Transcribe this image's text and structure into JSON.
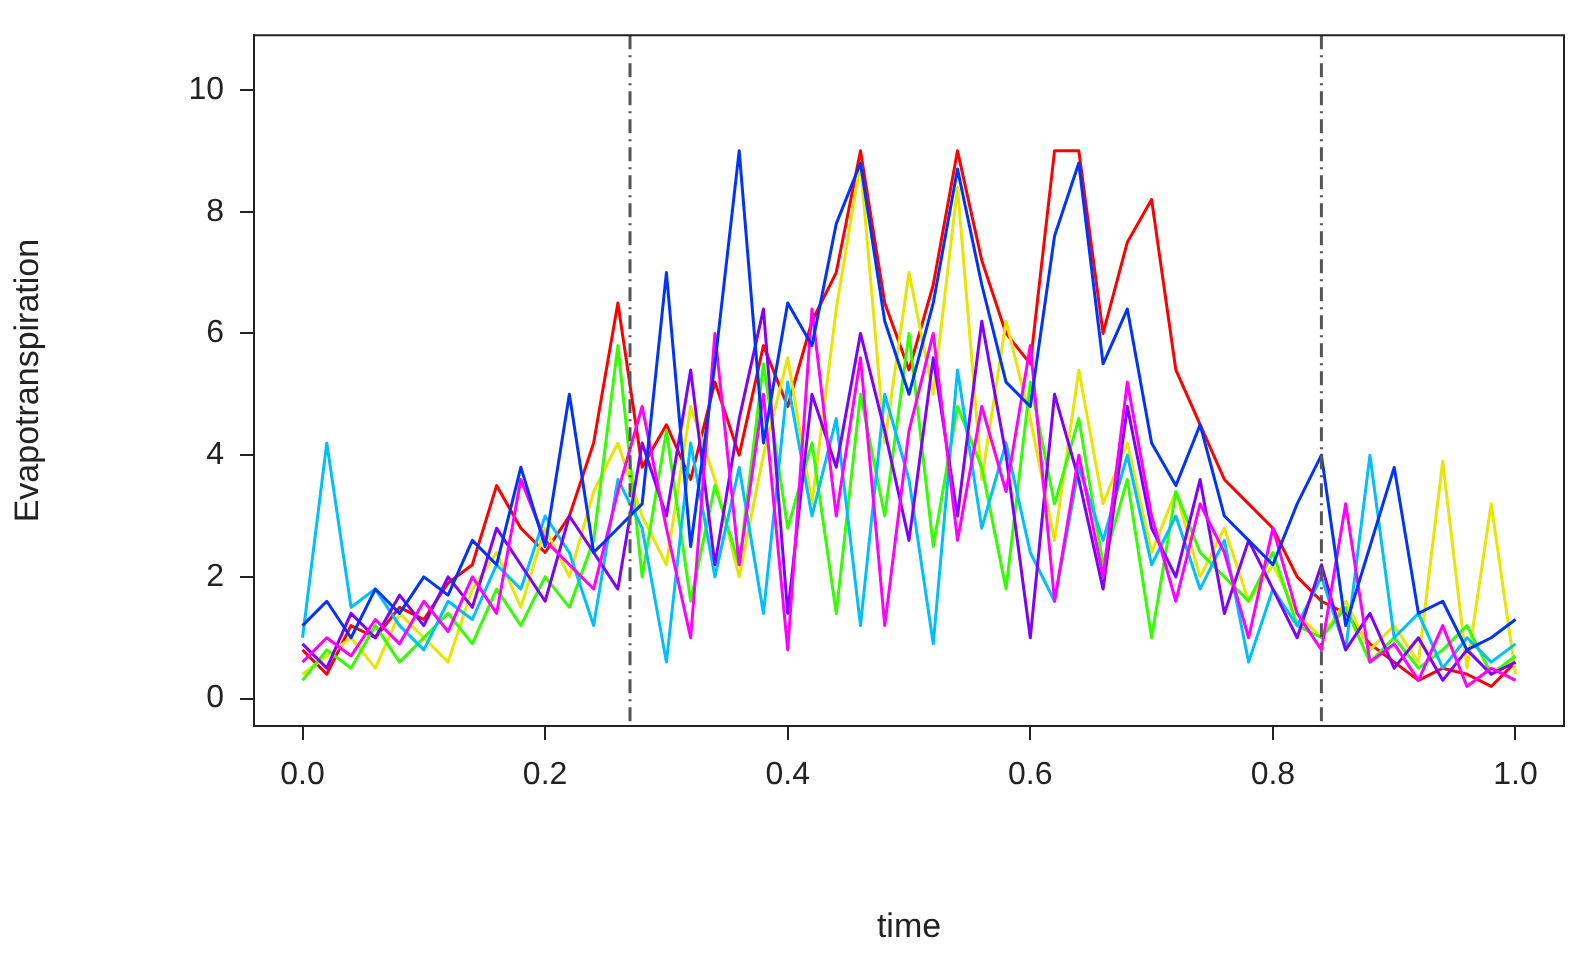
{
  "chart_data": {
    "type": "line",
    "xlabel": "time",
    "ylabel": "Evapotranspiration",
    "x": [
      0,
      0.02,
      0.04,
      0.06,
      0.08,
      0.1,
      0.12,
      0.14,
      0.16,
      0.18,
      0.2,
      0.22,
      0.24,
      0.26,
      0.28,
      0.3,
      0.32,
      0.34,
      0.36,
      0.38,
      0.4,
      0.42,
      0.44,
      0.46,
      0.48,
      0.5,
      0.52,
      0.54,
      0.56,
      0.58,
      0.6,
      0.62,
      0.64,
      0.66,
      0.68,
      0.7,
      0.72,
      0.74,
      0.76,
      0.78,
      0.8,
      0.82,
      0.84,
      0.86,
      0.88,
      0.9,
      0.92,
      0.94,
      0.96,
      0.98,
      1
    ],
    "series": [
      {
        "color": "#ff0000",
        "values": [
          0.8,
          0.4,
          1.2,
          1.0,
          1.5,
          1.3,
          1.9,
          2.2,
          3.5,
          2.8,
          2.4,
          3.0,
          4.2,
          6.5,
          3.8,
          4.5,
          3.6,
          5.2,
          4.0,
          5.8,
          4.8,
          6.2,
          7.0,
          9.0,
          6.5,
          5.4,
          6.8,
          9.0,
          7.2,
          6.0,
          5.5,
          9.0,
          9.0,
          6.0,
          7.5,
          8.2,
          5.4,
          4.5,
          3.6,
          3.2,
          2.8,
          2.0,
          1.6,
          1.4,
          0.9,
          0.6,
          0.3,
          0.5,
          0.4,
          0.2,
          0.6
        ]
      },
      {
        "color": "#e6e600",
        "values": [
          0.4,
          0.7,
          1.0,
          0.5,
          1.4,
          1.0,
          0.6,
          1.8,
          2.4,
          1.5,
          2.8,
          2.0,
          3.4,
          4.2,
          3.0,
          2.2,
          4.8,
          3.6,
          2.0,
          4.0,
          5.6,
          3.2,
          6.4,
          8.8,
          4.2,
          7.0,
          5.0,
          8.4,
          3.6,
          6.2,
          4.6,
          2.6,
          5.4,
          3.2,
          4.2,
          2.4,
          3.4,
          2.0,
          2.8,
          1.6,
          2.2,
          1.4,
          1.0,
          1.6,
          0.8,
          1.2,
          0.6,
          3.9,
          0.5,
          3.2,
          0.4
        ]
      },
      {
        "color": "#33ff00",
        "values": [
          0.3,
          0.8,
          0.5,
          1.2,
          0.6,
          1.0,
          1.4,
          0.9,
          1.8,
          1.2,
          2.0,
          1.5,
          2.6,
          5.8,
          2.0,
          4.4,
          1.6,
          3.5,
          2.2,
          5.5,
          2.8,
          4.2,
          1.4,
          5.0,
          3.0,
          6.0,
          2.5,
          4.8,
          3.8,
          1.8,
          5.2,
          3.2,
          4.6,
          2.2,
          3.6,
          1.0,
          3.4,
          2.4,
          2.0,
          1.6,
          2.4,
          1.2,
          1.0,
          1.5,
          0.6,
          1.0,
          0.5,
          0.8,
          1.2,
          0.4,
          0.7
        ]
      },
      {
        "color": "#00bfff",
        "values": [
          1.0,
          4.2,
          1.5,
          1.8,
          1.2,
          0.8,
          1.6,
          1.3,
          2.2,
          1.8,
          3.0,
          2.4,
          1.2,
          3.6,
          2.8,
          0.6,
          4.2,
          2.0,
          3.8,
          1.4,
          5.2,
          3.0,
          4.6,
          1.2,
          5.0,
          3.6,
          0.9,
          5.4,
          2.8,
          4.2,
          2.4,
          1.6,
          3.8,
          2.6,
          4.0,
          2.2,
          3.0,
          1.8,
          2.6,
          0.6,
          1.8,
          1.2,
          2.0,
          0.8,
          4.0,
          1.0,
          1.4,
          0.5,
          1.0,
          0.6,
          0.9
        ]
      },
      {
        "color": "#8000ff",
        "values": [
          0.9,
          0.5,
          1.4,
          1.0,
          1.7,
          1.2,
          2.0,
          1.5,
          2.8,
          2.2,
          1.6,
          3.0,
          2.4,
          1.8,
          4.2,
          3.0,
          5.4,
          2.2,
          4.6,
          6.4,
          1.4,
          5.0,
          3.8,
          6.0,
          4.4,
          2.6,
          5.6,
          3.0,
          6.2,
          4.0,
          1.0,
          5.0,
          3.6,
          1.8,
          4.8,
          2.8,
          2.0,
          3.6,
          1.4,
          2.6,
          1.8,
          1.0,
          2.2,
          0.8,
          1.4,
          0.5,
          1.0,
          0.3,
          0.8,
          0.4,
          0.6
        ]
      },
      {
        "color": "#ff00ff",
        "values": [
          0.6,
          1.0,
          0.7,
          1.3,
          0.9,
          1.6,
          1.1,
          2.0,
          1.4,
          3.6,
          2.6,
          2.2,
          1.8,
          3.4,
          4.8,
          2.8,
          1.0,
          6.0,
          2.2,
          5.0,
          0.8,
          6.4,
          3.0,
          5.6,
          1.2,
          4.4,
          6.0,
          2.6,
          4.8,
          3.4,
          5.8,
          1.6,
          4.0,
          2.0,
          5.2,
          3.0,
          1.6,
          3.2,
          2.4,
          1.0,
          2.8,
          1.4,
          0.8,
          3.2,
          0.6,
          0.9,
          0.3,
          1.2,
          0.2,
          0.5,
          0.3
        ]
      },
      {
        "color": "#0033ff",
        "values": [
          1.2,
          1.6,
          1.0,
          1.8,
          1.4,
          2.0,
          1.7,
          2.6,
          2.2,
          3.8,
          2.5,
          5.0,
          2.4,
          2.8,
          3.2,
          7.0,
          2.5,
          5.5,
          9.0,
          4.2,
          6.5,
          5.8,
          7.8,
          8.8,
          6.2,
          5.0,
          6.5,
          8.7,
          6.8,
          5.2,
          4.8,
          7.6,
          8.8,
          5.5,
          6.4,
          4.2,
          3.5,
          4.5,
          3.0,
          2.6,
          2.2,
          3.2,
          4.0,
          1.2,
          2.5,
          3.8,
          1.4,
          1.6,
          0.8,
          1.0,
          1.3
        ]
      }
    ],
    "xlim": [
      -0.04,
      1.04
    ],
    "ylim": [
      -0.45,
      10.9
    ],
    "xticks": [
      {
        "value": 0,
        "label": "0.0"
      },
      {
        "value": 0.2,
        "label": "0.2"
      },
      {
        "value": 0.4,
        "label": "0.4"
      },
      {
        "value": 0.6,
        "label": "0.6"
      },
      {
        "value": 0.8,
        "label": "0.8"
      },
      {
        "value": 1,
        "label": "1.0"
      }
    ],
    "yticks": [
      0,
      2,
      4,
      6,
      8,
      10
    ],
    "ref_lines": [
      {
        "axis": "x",
        "value": 0.27,
        "color": "#555555",
        "line_style": "dashed"
      },
      {
        "axis": "x",
        "value": 0.84,
        "color": "#555555",
        "line_style": "dashed"
      }
    ],
    "line_style": "solid",
    "marker": "none"
  }
}
